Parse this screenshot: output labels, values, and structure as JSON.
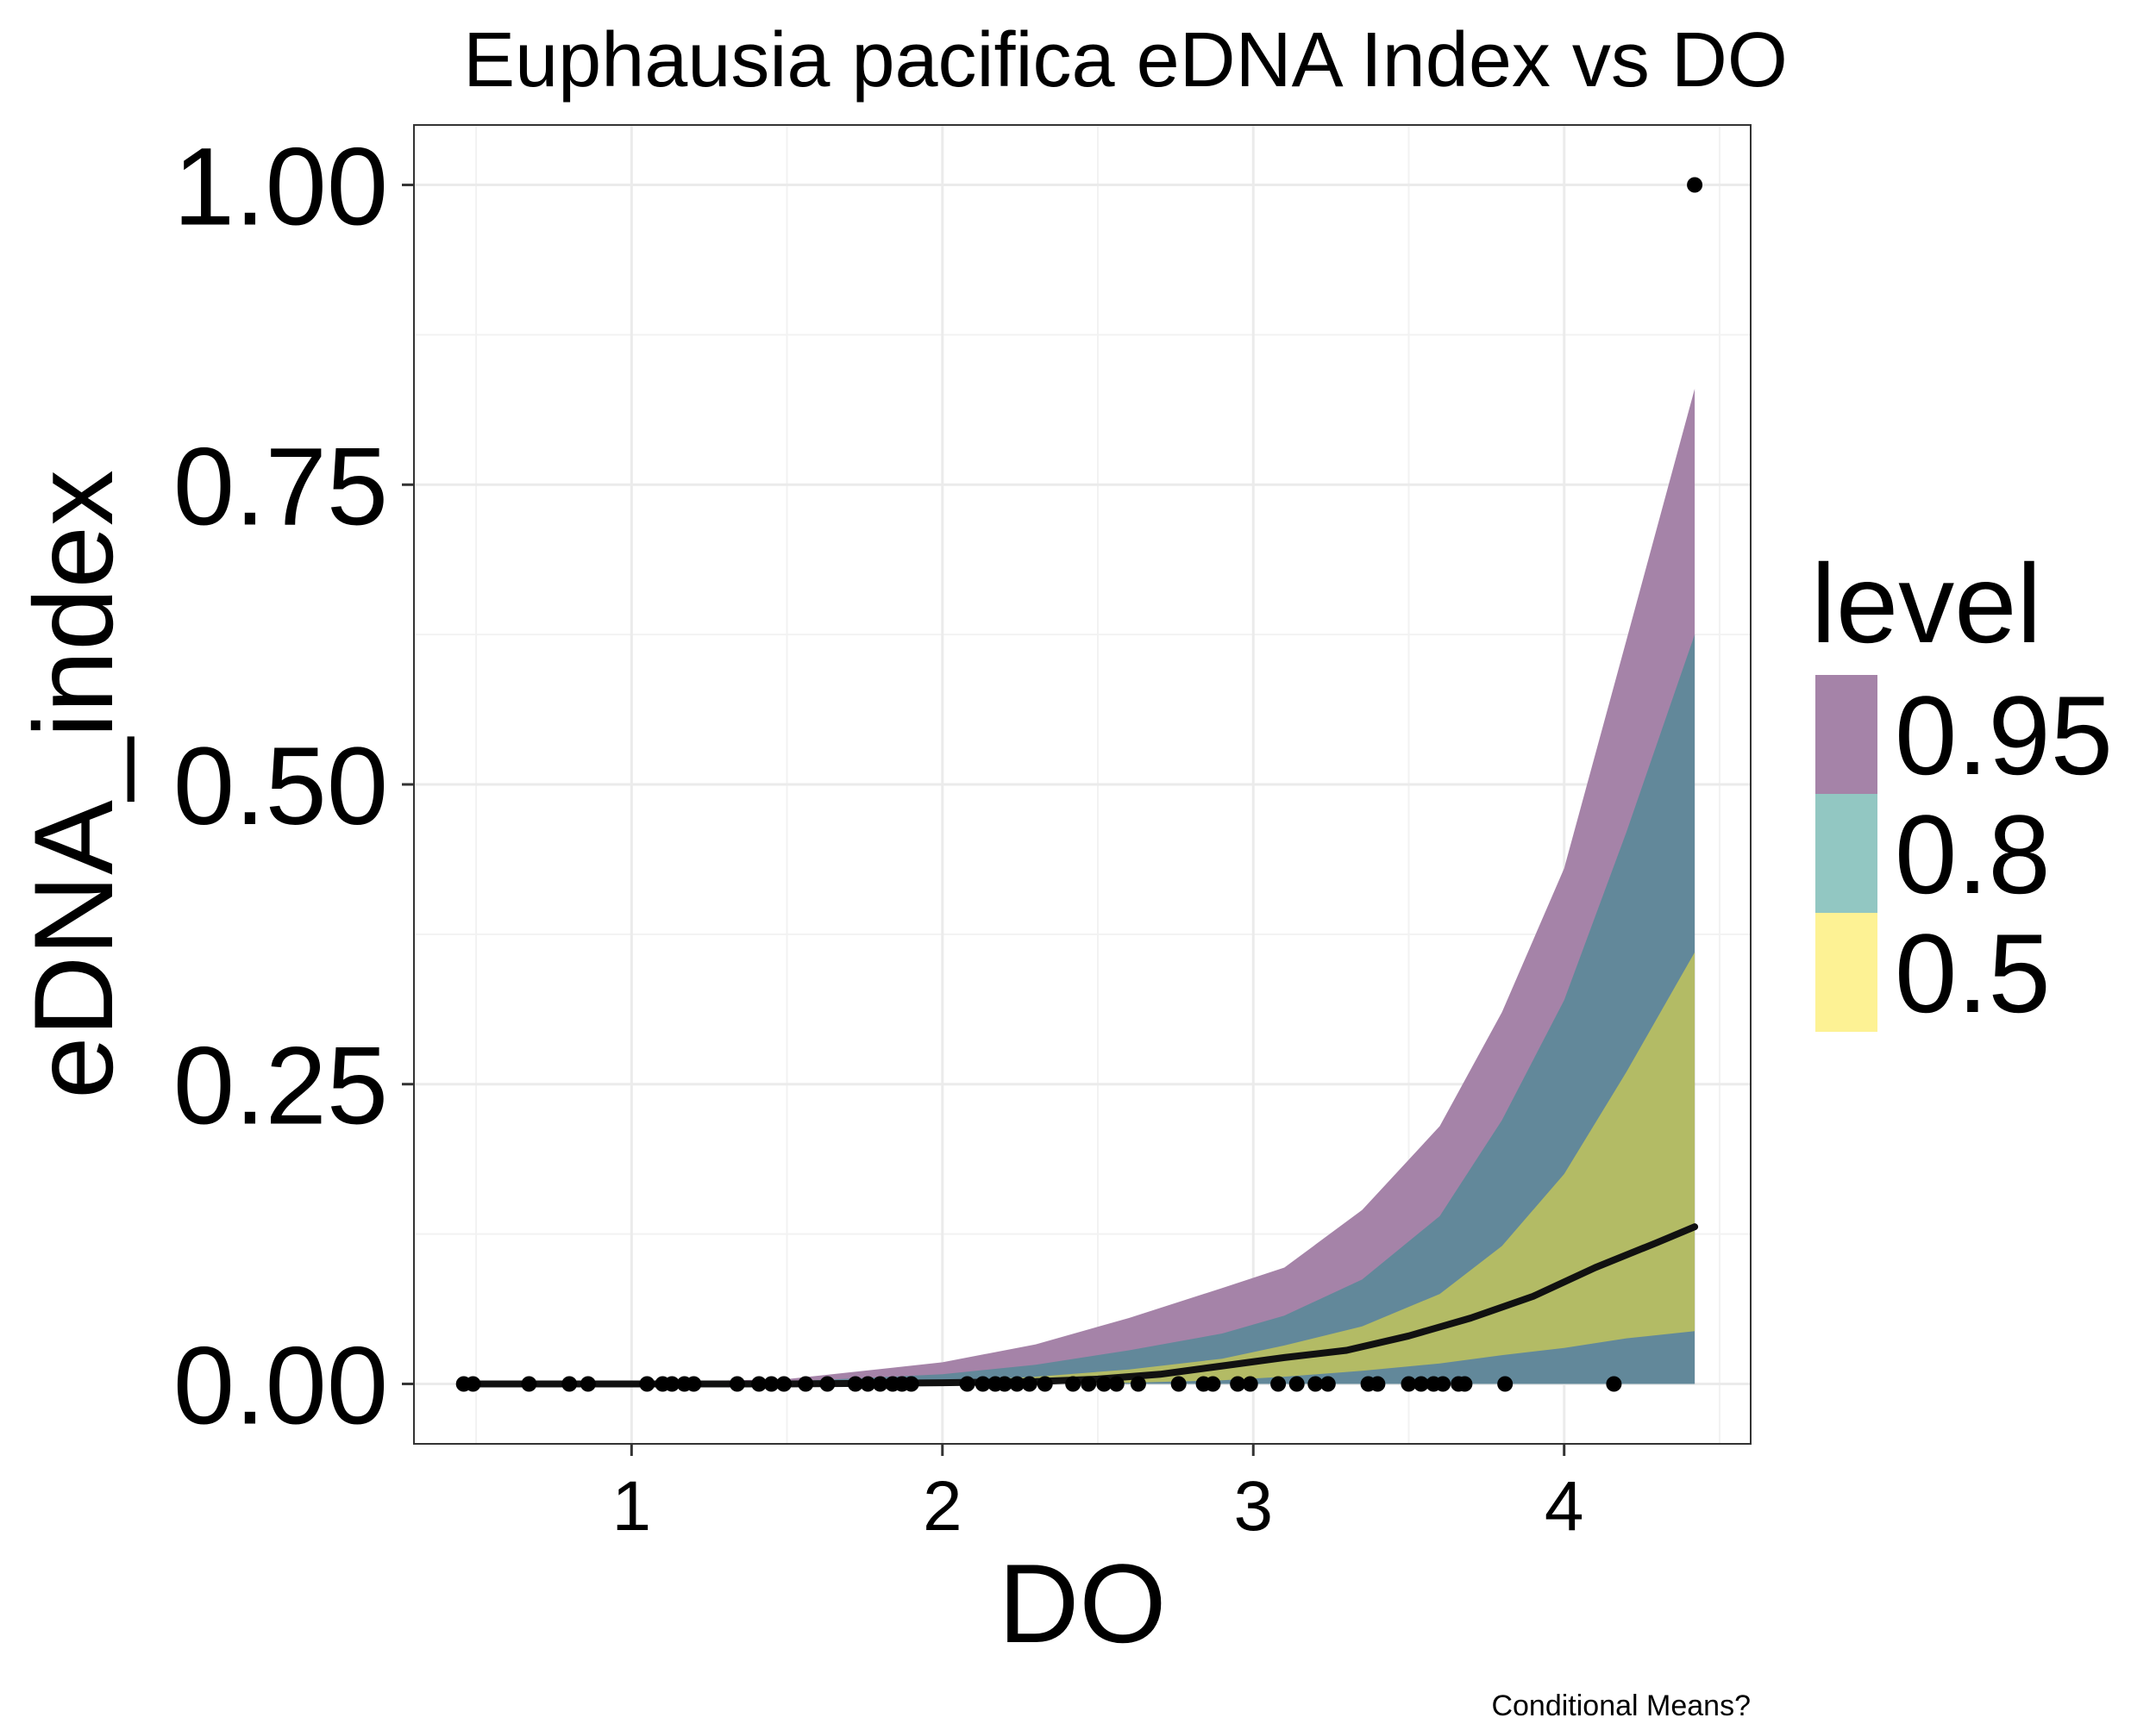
{
  "chart_data": {
    "type": "line",
    "title": "Euphausia pacifica eDNA Index vs DO",
    "xlabel": "DO",
    "ylabel": "eDNA_index",
    "caption": "Conditional Means?",
    "xlim": [
      0.3,
      4.6
    ],
    "ylim": [
      -0.05,
      1.05
    ],
    "x_ticks": [
      1,
      2,
      3,
      4
    ],
    "x_tick_labels": [
      "1",
      "2",
      "3",
      "4"
    ],
    "y_ticks": [
      0,
      0.25,
      0.5,
      0.75,
      1.0
    ],
    "y_tick_labels": [
      "0.00",
      "0.25",
      "0.50",
      "0.75",
      "1.00"
    ],
    "grid": true,
    "legend": {
      "title": "level",
      "position": "right",
      "entries": [
        {
          "label": "0.95",
          "color": "#a583a8"
        },
        {
          "label": "0.8",
          "color": "#92c7c2"
        },
        {
          "label": "0.5",
          "color": "#fdf294"
        }
      ]
    },
    "bands": [
      {
        "level": "0.95",
        "fill": "#a583a8",
        "x": [
          0.46,
          1.0,
          1.5,
          2.0,
          2.3,
          2.6,
          2.9,
          3.1,
          3.35,
          3.6,
          3.8,
          4.0,
          4.2,
          4.42
        ],
        "lower": [
          0,
          0,
          0,
          0,
          0,
          0,
          0,
          0,
          0,
          0,
          0,
          0,
          0,
          0
        ],
        "upper": [
          0,
          0.001,
          0.004,
          0.018,
          0.033,
          0.055,
          0.08,
          0.097,
          0.145,
          0.215,
          0.31,
          0.43,
          0.62,
          0.83
        ]
      },
      {
        "level": "0.8",
        "fill": "#62889a",
        "x": [
          0.46,
          1.0,
          1.5,
          2.0,
          2.3,
          2.6,
          2.9,
          3.1,
          3.35,
          3.6,
          3.8,
          4.0,
          4.2,
          4.42
        ],
        "lower": [
          0,
          0,
          0,
          0,
          0,
          0,
          0,
          0,
          0,
          0,
          0,
          0,
          0,
          0
        ],
        "upper": [
          0,
          0.0005,
          0.002,
          0.008,
          0.016,
          0.028,
          0.042,
          0.057,
          0.087,
          0.14,
          0.22,
          0.32,
          0.46,
          0.625
        ]
      },
      {
        "level": "0.5",
        "fill": "#b3bb65",
        "x": [
          2.0,
          2.3,
          2.6,
          2.9,
          3.1,
          3.35,
          3.6,
          3.8,
          4.0,
          4.2,
          4.42
        ],
        "lower": [
          0,
          0,
          0.001,
          0.003,
          0.006,
          0.011,
          0.017,
          0.024,
          0.03,
          0.038,
          0.044
        ],
        "upper": [
          0.002,
          0.006,
          0.012,
          0.021,
          0.032,
          0.048,
          0.075,
          0.115,
          0.175,
          0.26,
          0.36
        ]
      }
    ],
    "series": [
      {
        "type": "line",
        "x": [
          0.46,
          1.0,
          1.5,
          2.0,
          2.3,
          2.5,
          2.7,
          2.9,
          3.1,
          3.3,
          3.5,
          3.7,
          3.9,
          4.1,
          4.3,
          4.42
        ],
        "y": [
          0,
          0,
          0,
          0.001,
          0.002,
          0.004,
          0.008,
          0.015,
          0.022,
          0.028,
          0.04,
          0.055,
          0.073,
          0.097,
          0.118,
          0.131
        ]
      }
    ],
    "points": {
      "x": [
        0.46,
        0.49,
        0.67,
        0.8,
        0.86,
        1.05,
        1.1,
        1.13,
        1.17,
        1.2,
        1.34,
        1.41,
        1.45,
        1.49,
        1.56,
        1.63,
        1.72,
        1.76,
        1.8,
        1.84,
        1.87,
        1.9,
        2.08,
        2.13,
        2.17,
        2.2,
        2.24,
        2.28,
        2.33,
        2.42,
        2.47,
        2.52,
        2.56,
        2.63,
        2.76,
        2.84,
        2.87,
        2.95,
        2.99,
        3.08,
        3.14,
        3.2,
        3.24,
        3.37,
        3.4,
        3.5,
        3.54,
        3.58,
        3.61,
        3.66,
        3.68,
        3.81,
        4.16,
        4.42
      ],
      "y": [
        0,
        0,
        0,
        0,
        0,
        0,
        0,
        0,
        0,
        0,
        0,
        0,
        0,
        0,
        0,
        0,
        0,
        0,
        0,
        0,
        0,
        0,
        0,
        0,
        0,
        0,
        0,
        0,
        0,
        0,
        0,
        0,
        0,
        0,
        0,
        0,
        0,
        0,
        0,
        0,
        0,
        0,
        0,
        0,
        0,
        0,
        0,
        0,
        0,
        0,
        0,
        0,
        0,
        1.0
      ]
    }
  }
}
